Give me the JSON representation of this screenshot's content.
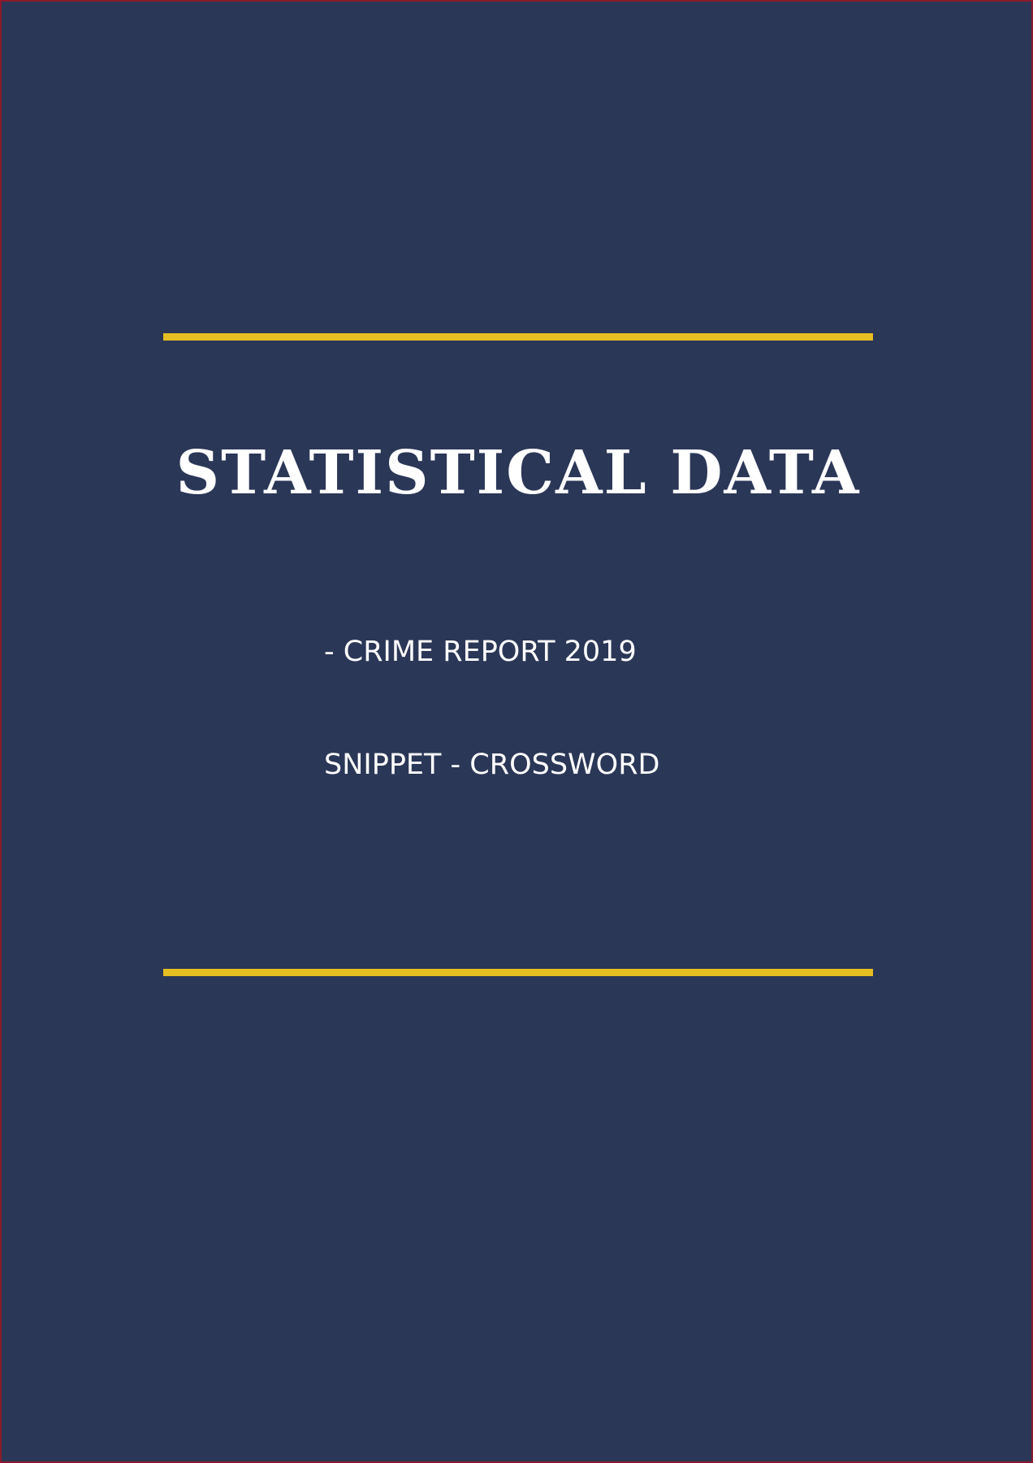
{
  "colors": {
    "background": "#2b3757",
    "accent": "#e6bd22",
    "text": "#ffffff",
    "border": "#8b1a2b"
  },
  "cover": {
    "title": "STATISTICAL DATA",
    "subtitle_1": "- CRIME REPORT 2019",
    "subtitle_2": "SNIPPET - CROSSWORD"
  }
}
